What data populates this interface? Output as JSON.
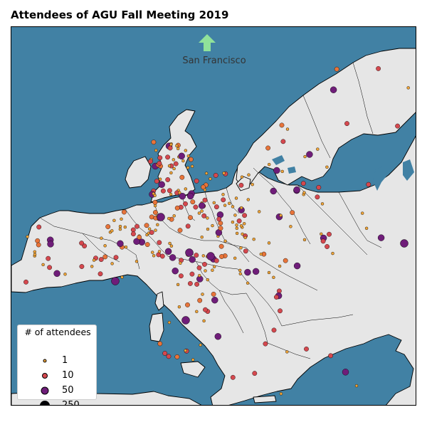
{
  "title": "Attendees of AGU Fall Meeting 2019",
  "map": {
    "arrow_label": "San Francisco",
    "arrow_icon": "up-arrow-icon",
    "colors": {
      "sea": "#4181a4",
      "land": "#e6e6e6",
      "arrow": "#90e29a"
    }
  },
  "legend": {
    "title": "# of attendees",
    "items": [
      {
        "label": "1",
        "color": "#f0a438",
        "value": 1
      },
      {
        "label": "10",
        "color": "#d5484e",
        "value": 10
      },
      {
        "label": "50",
        "color": "#6f1d79",
        "value": 50
      },
      {
        "label": "250",
        "color": "#000005",
        "value": 250
      }
    ]
  }
}
